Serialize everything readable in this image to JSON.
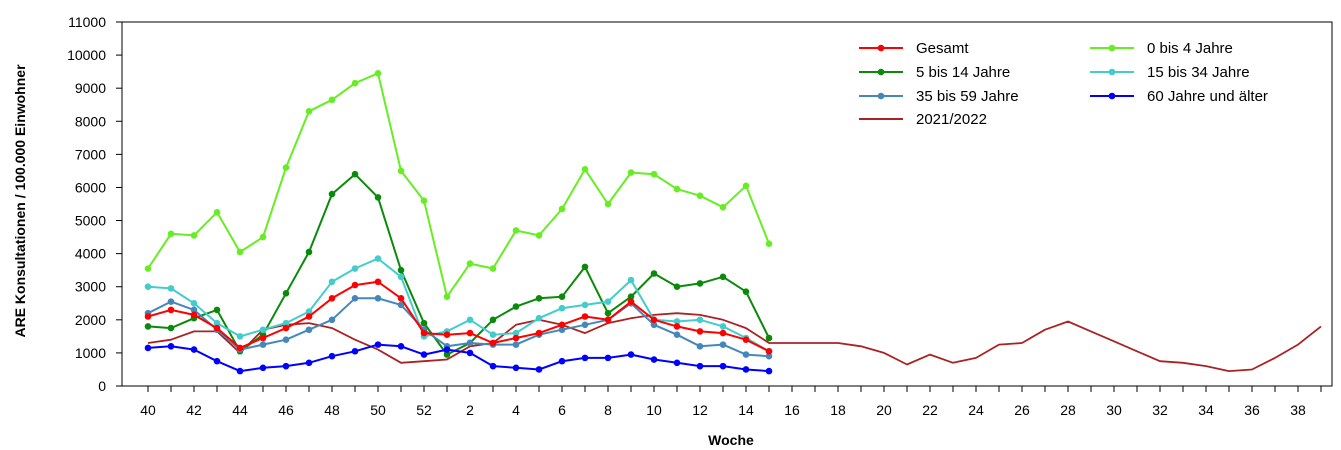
{
  "chart_data": {
    "type": "line",
    "xlabel": "Woche",
    "ylabel": "ARE Konsultationen / 100.000 Einwohner",
    "ylim": [
      0,
      11000
    ],
    "yticks": [
      0,
      1000,
      2000,
      3000,
      4000,
      5000,
      6000,
      7000,
      8000,
      9000,
      10000,
      11000
    ],
    "x_categories": [
      "40",
      "41",
      "42",
      "43",
      "44",
      "45",
      "46",
      "47",
      "48",
      "49",
      "50",
      "51",
      "52",
      "1",
      "2",
      "3",
      "4",
      "5",
      "6",
      "7",
      "8",
      "9",
      "10",
      "11",
      "12",
      "13",
      "14",
      "15",
      "16",
      "17",
      "18",
      "19",
      "20",
      "21",
      "22",
      "23",
      "24",
      "25",
      "26",
      "27",
      "28",
      "29",
      "30",
      "31",
      "32",
      "33",
      "34",
      "35",
      "36",
      "37",
      "38",
      "39"
    ],
    "x_tick_labels": [
      "40",
      "",
      "42",
      "",
      "44",
      "",
      "46",
      "",
      "48",
      "",
      "50",
      "",
      "52",
      "",
      "2",
      "",
      "4",
      "",
      "6",
      "",
      "8",
      "",
      "10",
      "",
      "12",
      "",
      "14",
      "",
      "16",
      "",
      "18",
      "",
      "20",
      "",
      "22",
      "",
      "24",
      "",
      "26",
      "",
      "28",
      "",
      "30",
      "",
      "32",
      "",
      "34",
      "",
      "36",
      "",
      "38",
      ""
    ],
    "legend": {
      "placement": "top-right",
      "columns": 2
    },
    "grid": false,
    "series": [
      {
        "name": "Gesamt",
        "color": "#ff0000",
        "markers": true,
        "values": [
          2100,
          2300,
          2150,
          1750,
          1150,
          1450,
          1750,
          2100,
          2650,
          3050,
          3150,
          2650,
          1600,
          1550,
          1600,
          1300,
          1450,
          1600,
          1850,
          2100,
          2000,
          2550,
          2000,
          1800,
          1650,
          1600,
          1400,
          1050
        ]
      },
      {
        "name": "0 bis 4 Jahre",
        "color": "#66ee22",
        "markers": true,
        "values": [
          3550,
          4600,
          4550,
          5250,
          4050,
          4500,
          6600,
          8300,
          8650,
          9150,
          9450,
          6500,
          5600,
          2700,
          3700,
          3550,
          4700,
          4550,
          5350,
          6550,
          5500,
          6450,
          6400,
          5950,
          5750,
          5400,
          6050,
          4300
        ]
      },
      {
        "name": "5 bis 14 Jahre",
        "color": "#0a8a0a",
        "markers": true,
        "values": [
          1800,
          1750,
          2050,
          2300,
          1050,
          1550,
          2800,
          4050,
          5800,
          6400,
          5700,
          3500,
          1900,
          950,
          1300,
          2000,
          2400,
          2650,
          2700,
          3600,
          2200,
          2700,
          3400,
          3000,
          3100,
          3300,
          2850,
          1450
        ]
      },
      {
        "name": "15 bis 34 Jahre",
        "color": "#44cccc",
        "markers": true,
        "values": [
          3000,
          2950,
          2500,
          1900,
          1500,
          1700,
          1900,
          2250,
          3150,
          3550,
          3850,
          3300,
          1500,
          1650,
          2000,
          1550,
          1600,
          2050,
          2350,
          2450,
          2550,
          3200,
          2000,
          1950,
          2000,
          1800,
          1450,
          1050
        ]
      },
      {
        "name": "35 bis 59 Jahre",
        "color": "#4488bb",
        "markers": true,
        "values": [
          2200,
          2550,
          2300,
          1700,
          1100,
          1250,
          1400,
          1700,
          2000,
          2650,
          2650,
          2450,
          1700,
          1200,
          1300,
          1250,
          1250,
          1550,
          1700,
          1850,
          2000,
          2500,
          1850,
          1550,
          1200,
          1250,
          950,
          900
        ]
      },
      {
        "name": "60 Jahre und älter",
        "color": "#0000ff",
        "markers": true,
        "values": [
          1150,
          1200,
          1100,
          750,
          450,
          550,
          600,
          700,
          900,
          1050,
          1250,
          1200,
          950,
          1100,
          1000,
          600,
          550,
          500,
          750,
          850,
          850,
          950,
          800,
          700,
          600,
          600,
          500,
          450
        ]
      },
      {
        "name": "2021/2022",
        "color": "#aa2222",
        "markers": false,
        "values": [
          1300,
          1400,
          1650,
          1650,
          1000,
          1700,
          1850,
          1900,
          1750,
          1400,
          1100,
          700,
          750,
          800,
          1200,
          1300,
          1850,
          2000,
          1850,
          1600,
          1900,
          2050,
          2150,
          2200,
          2150,
          2000,
          1750,
          1300,
          1300,
          1300,
          1300,
          1200,
          1000,
          650,
          950,
          700,
          850,
          1250,
          1300,
          1700,
          1950,
          1650,
          1350,
          1050,
          750,
          700,
          600,
          450,
          500,
          850,
          1250,
          1800
        ]
      }
    ]
  }
}
